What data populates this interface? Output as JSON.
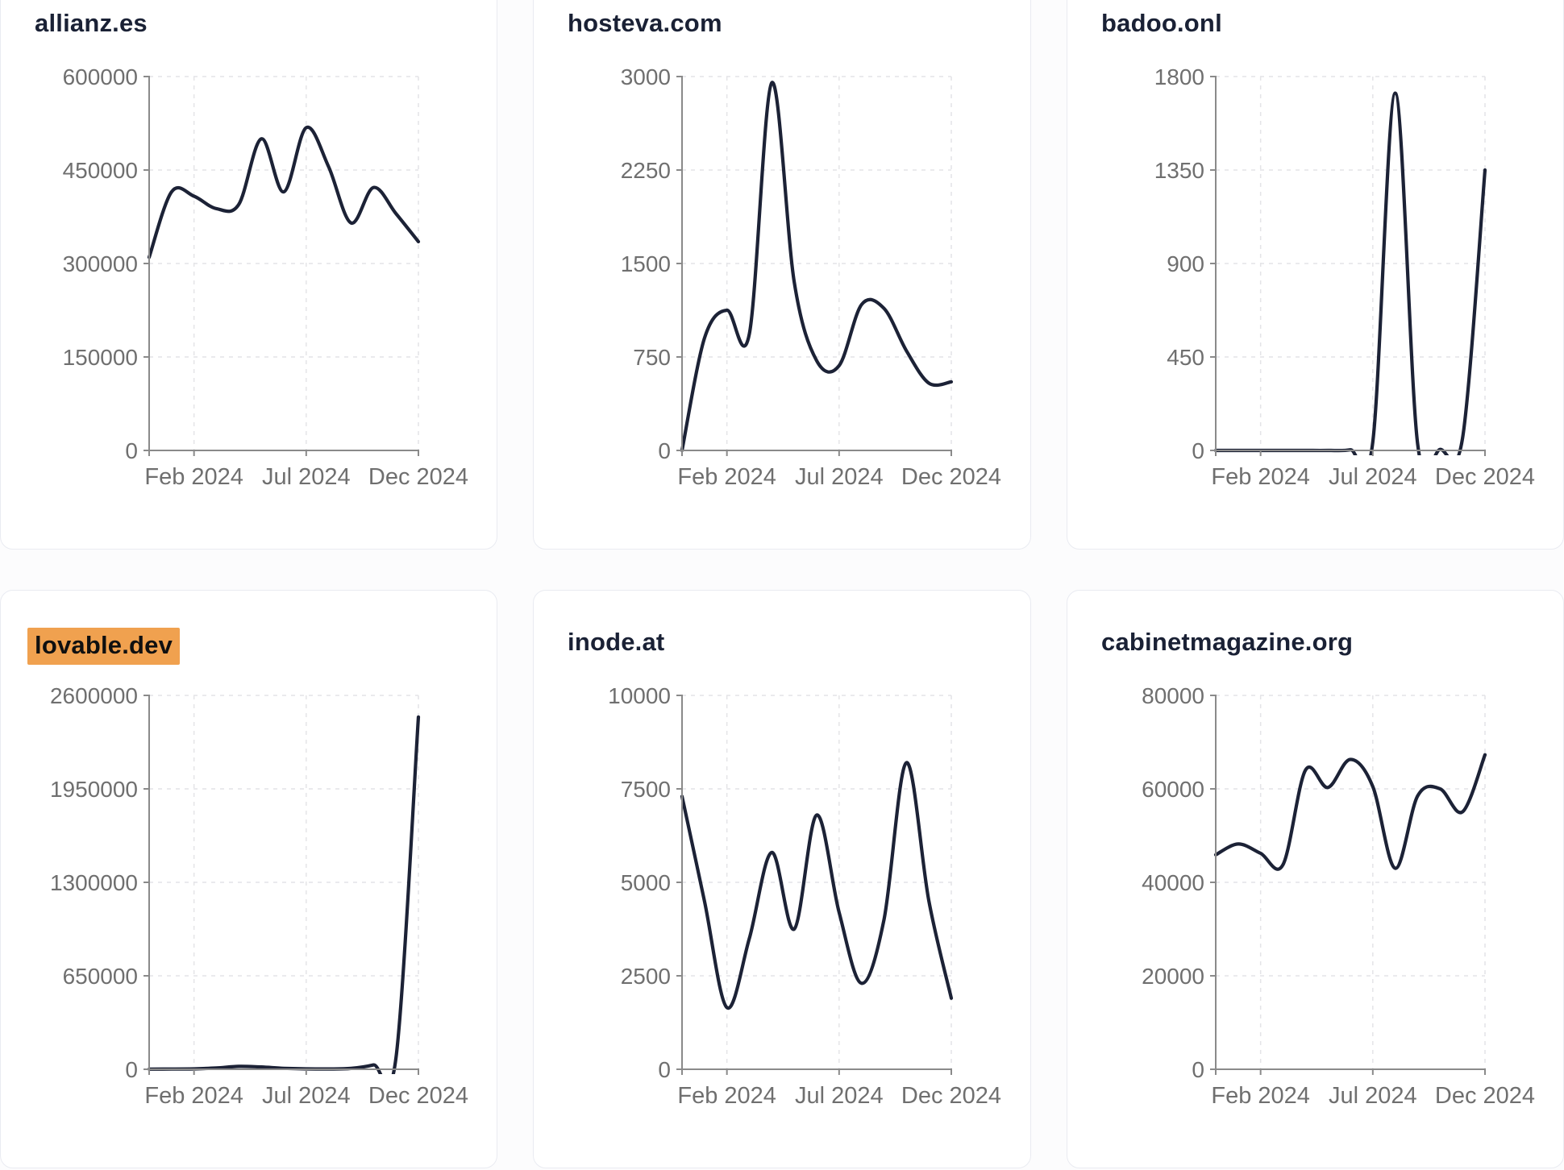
{
  "page": {
    "background": "#fcfcfd",
    "layout": "2x3 grid of domain traffic trend cards"
  },
  "style": {
    "card_background": "#ffffff",
    "card_border": "#e9ebf1",
    "title_color": "#1a2135",
    "title_highlight_background": "#f0a14f",
    "line_color": "#1c2236",
    "axis_color": "#8a8a8a",
    "grid_color": "#e4e4e7",
    "tick_label_color": "#6f6f6f"
  },
  "chart_data": [
    {
      "type": "line",
      "title": "allianz.es",
      "title_highlighted": false,
      "x_months": [
        "Dec 2023",
        "Jan 2024",
        "Feb 2024",
        "Mar 2024",
        "Apr 2024",
        "May 2024",
        "Jun 2024",
        "Jul 2024",
        "Aug 2024",
        "Sep 2024",
        "Oct 2024",
        "Nov 2024",
        "Dec 2024"
      ],
      "values": [
        310000,
        415000,
        408000,
        388000,
        395000,
        500000,
        415000,
        518000,
        455000,
        365000,
        422000,
        380000,
        335000
      ],
      "y_ticks": [
        0,
        150000,
        300000,
        450000,
        600000
      ],
      "ylim": [
        0,
        600000
      ],
      "x_ticks": [
        {
          "label": "Feb 2024",
          "index": 2
        },
        {
          "label": "Jul 2024",
          "index": 7
        },
        {
          "label": "Dec 2024",
          "index": 12
        }
      ],
      "grid": "dashed"
    },
    {
      "type": "line",
      "title": "hosteva.com",
      "title_highlighted": false,
      "x_months": [
        "Dec 2023",
        "Jan 2024",
        "Feb 2024",
        "Mar 2024",
        "Apr 2024",
        "May 2024",
        "Jun 2024",
        "Jul 2024",
        "Aug 2024",
        "Sep 2024",
        "Oct 2024",
        "Nov 2024",
        "Dec 2024"
      ],
      "values": [
        0,
        900,
        1125,
        935,
        2950,
        1350,
        720,
        680,
        1170,
        1140,
        800,
        540,
        550
      ],
      "y_ticks": [
        0,
        750,
        1500,
        2250,
        3000
      ],
      "ylim": [
        0,
        3000
      ],
      "x_ticks": [
        {
          "label": "Feb 2024",
          "index": 2
        },
        {
          "label": "Jul 2024",
          "index": 7
        },
        {
          "label": "Dec 2024",
          "index": 12
        }
      ],
      "grid": "dashed"
    },
    {
      "type": "line",
      "title": "badoo.onl",
      "title_highlighted": false,
      "x_months": [
        "Dec 2023",
        "Jan 2024",
        "Feb 2024",
        "Mar 2024",
        "Apr 2024",
        "May 2024",
        "Jun 2024",
        "Jul 2024",
        "Aug 2024",
        "Sep 2024",
        "Oct 2024",
        "Nov 2024",
        "Dec 2024"
      ],
      "values": [
        0,
        0,
        0,
        0,
        0,
        0,
        3,
        40,
        1720,
        30,
        5,
        60,
        1350
      ],
      "y_ticks": [
        0,
        450,
        900,
        1350,
        1800
      ],
      "ylim": [
        0,
        1800
      ],
      "x_ticks": [
        {
          "label": "Feb 2024",
          "index": 2
        },
        {
          "label": "Jul 2024",
          "index": 7
        },
        {
          "label": "Dec 2024",
          "index": 12
        }
      ],
      "grid": "dashed"
    },
    {
      "type": "line",
      "title": "lovable.dev",
      "title_highlighted": true,
      "x_months": [
        "Dec 2023",
        "Jan 2024",
        "Feb 2024",
        "Mar 2024",
        "Apr 2024",
        "May 2024",
        "Jun 2024",
        "Jul 2024",
        "Aug 2024",
        "Sep 2024",
        "Oct 2024",
        "Nov 2024",
        "Dec 2024"
      ],
      "values": [
        1000,
        1500,
        3000,
        9000,
        20000,
        16000,
        7000,
        3000,
        2000,
        6000,
        30000,
        80000,
        2450000
      ],
      "y_ticks": [
        0,
        650000,
        1300000,
        1950000,
        2600000
      ],
      "ylim": [
        0,
        2600000
      ],
      "x_ticks": [
        {
          "label": "Feb 2024",
          "index": 2
        },
        {
          "label": "Jul 2024",
          "index": 7
        },
        {
          "label": "Dec 2024",
          "index": 12
        }
      ],
      "grid": "dashed"
    },
    {
      "type": "line",
      "title": "inode.at",
      "title_highlighted": false,
      "x_months": [
        "Dec 2023",
        "Jan 2024",
        "Feb 2024",
        "Mar 2024",
        "Apr 2024",
        "May 2024",
        "Jun 2024",
        "Jul 2024",
        "Aug 2024",
        "Sep 2024",
        "Oct 2024",
        "Nov 2024",
        "Dec 2024"
      ],
      "values": [
        7300,
        4500,
        1650,
        3500,
        5800,
        3750,
        6800,
        4200,
        2300,
        4000,
        8200,
        4500,
        1900
      ],
      "y_ticks": [
        0,
        2500,
        5000,
        7500,
        10000
      ],
      "ylim": [
        0,
        10000
      ],
      "x_ticks": [
        {
          "label": "Feb 2024",
          "index": 2
        },
        {
          "label": "Jul 2024",
          "index": 7
        },
        {
          "label": "Dec 2024",
          "index": 12
        }
      ],
      "grid": "dashed"
    },
    {
      "type": "line",
      "title": "cabinetmagazine.org",
      "title_highlighted": false,
      "x_months": [
        "Dec 2023",
        "Jan 2024",
        "Feb 2024",
        "Mar 2024",
        "Apr 2024",
        "May 2024",
        "Jun 2024",
        "Jul 2024",
        "Aug 2024",
        "Sep 2024",
        "Oct 2024",
        "Nov 2024",
        "Dec 2024"
      ],
      "values": [
        45900,
        48200,
        46200,
        43800,
        64000,
        60300,
        66300,
        60500,
        43000,
        58500,
        60000,
        55100,
        67300
      ],
      "y_ticks": [
        0,
        20000,
        40000,
        60000,
        80000
      ],
      "ylim": [
        0,
        80000
      ],
      "x_ticks": [
        {
          "label": "Feb 2024",
          "index": 2
        },
        {
          "label": "Jul 2024",
          "index": 7
        },
        {
          "label": "Dec 2024",
          "index": 12
        }
      ],
      "grid": "dashed"
    }
  ]
}
